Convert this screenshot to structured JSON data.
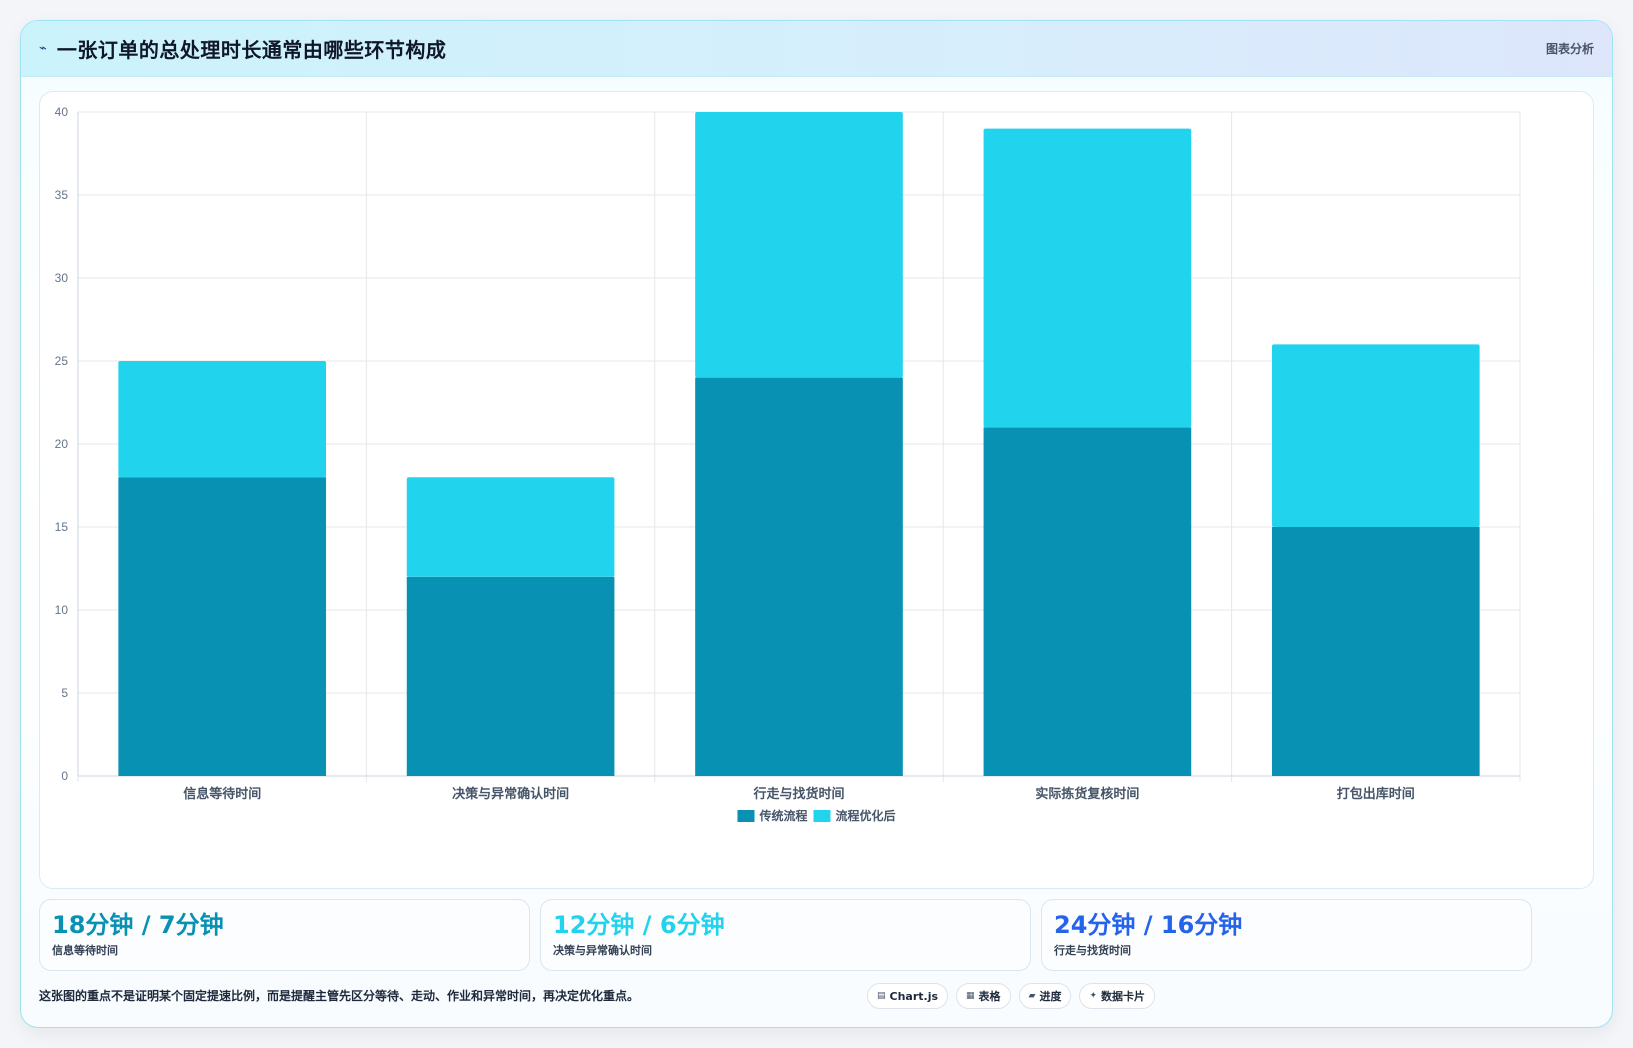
{
  "header": {
    "icon": "pulse-icon",
    "title": "一张订单的总处理时长通常由哪些环节构成",
    "tag": "图表分析"
  },
  "colors": {
    "series_traditional": "#0891b2",
    "series_optimized": "#22d3ee",
    "stat_1": "#0891b2",
    "stat_2": "#22d3ee",
    "stat_3": "#2563eb"
  },
  "chart_data": {
    "type": "bar",
    "stacked": true,
    "categories": [
      "信息等待时间",
      "决策与异常确认时间",
      "行走与找货时间",
      "实际拣货复核时间",
      "打包出库时间"
    ],
    "series": [
      {
        "name": "传统流程",
        "values": [
          18,
          12,
          24,
          21,
          15
        ],
        "color": "#0891b2"
      },
      {
        "name": "流程优化后",
        "values": [
          7,
          6,
          16,
          18,
          11
        ],
        "color": "#22d3ee"
      }
    ],
    "ylim": [
      0,
      40
    ],
    "yticks": [
      0,
      5,
      10,
      15,
      20,
      25,
      30,
      35,
      40
    ],
    "grid": true,
    "legend": "bottom"
  },
  "stats": [
    {
      "value": "18分钟 / 7分钟",
      "label": "信息等待时间"
    },
    {
      "value": "12分钟 / 6分钟",
      "label": "决策与异常确认时间"
    },
    {
      "value": "24分钟 / 16分钟",
      "label": "行走与找货时间"
    }
  ],
  "footer": {
    "note": "这张图的重点不是证明某个固定提速比例，而是提醒主管先区分等待、走动、作业和异常时间，再决定优化重点。",
    "chips": [
      {
        "icon": "chart-icon",
        "glyph": "▤",
        "label": "Chart.js"
      },
      {
        "icon": "table-icon",
        "glyph": "▦",
        "label": "表格"
      },
      {
        "icon": "progress-icon",
        "glyph": "▰",
        "label": "进度"
      },
      {
        "icon": "sparkle-icon",
        "glyph": "✦",
        "label": "数据卡片"
      }
    ]
  }
}
